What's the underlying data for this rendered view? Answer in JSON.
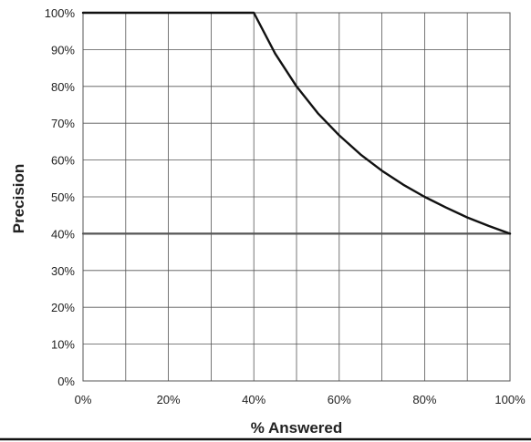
{
  "chart_data": {
    "type": "line",
    "title": "",
    "xlabel": "% Answered",
    "ylabel": "Precision",
    "xlim": [
      0,
      100
    ],
    "ylim": [
      0,
      100
    ],
    "xticks": [
      0,
      20,
      40,
      60,
      80,
      100
    ],
    "xtick_labels": [
      "0%",
      "20%",
      "40%",
      "60%",
      "80%",
      "100%"
    ],
    "yticks": [
      0,
      10,
      20,
      30,
      40,
      50,
      60,
      70,
      80,
      90,
      100
    ],
    "ytick_labels": [
      "0%",
      "10%",
      "20%",
      "30%",
      "40%",
      "50%",
      "60%",
      "70%",
      "80%",
      "90%",
      "100%"
    ],
    "grid": true,
    "x_grid_step": 10,
    "y_grid_step": 10,
    "legend": "none",
    "series": [
      {
        "color": "#111111",
        "x": [
          0,
          10,
          20,
          30,
          40,
          45,
          50,
          55,
          60,
          65,
          70,
          75,
          80,
          85,
          90,
          95,
          100
        ],
        "y": [
          100,
          100,
          100,
          100,
          100,
          88.9,
          80,
          72.7,
          66.7,
          61.5,
          57.1,
          53.3,
          50,
          47.1,
          44.4,
          42.1,
          40
        ]
      },
      {
        "color": "#555555",
        "x": [
          0,
          100
        ],
        "y": [
          40,
          40
        ]
      }
    ]
  }
}
